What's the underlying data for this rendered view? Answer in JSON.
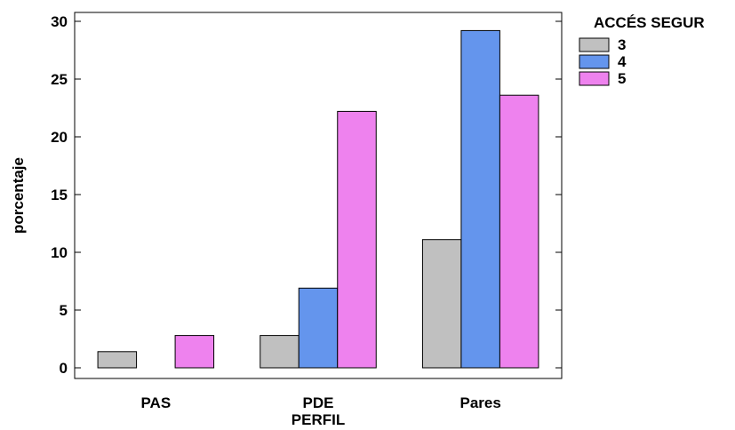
{
  "chart_data": {
    "type": "bar",
    "categories": [
      "PAS",
      "PDE",
      "Pares"
    ],
    "xlabel": "PERFIL",
    "ylabel": "porcentaje",
    "ylim": [
      0,
      30
    ],
    "yticks": [
      0,
      5,
      10,
      15,
      20,
      25,
      30
    ],
    "grid": false,
    "legend": {
      "title": "ACCÉS SEGUR",
      "placement": "right"
    },
    "series": [
      {
        "name": "3",
        "color": "#c0c0c0",
        "values": [
          1.4,
          2.8,
          11.1
        ]
      },
      {
        "name": "4",
        "color": "#6495ed",
        "values": [
          0.0,
          6.9,
          29.2
        ]
      },
      {
        "name": "5",
        "color": "#ee82ee",
        "values": [
          2.8,
          22.2,
          23.6
        ]
      }
    ]
  }
}
